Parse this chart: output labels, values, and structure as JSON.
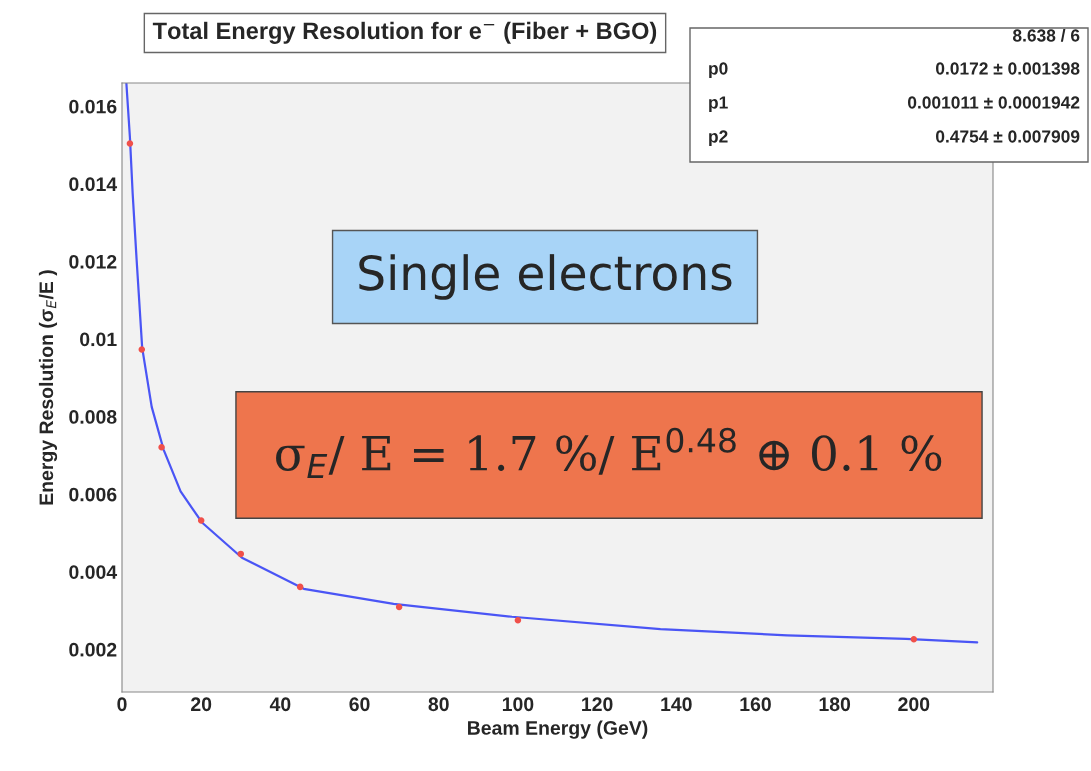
{
  "chart_data": {
    "type": "scatter",
    "title": "Total Energy Resolution for e$^{−}$ (Fiber + BGO)",
    "xlabel": "Beam Energy (GeV)",
    "ylabel": "Energy Resolution (σ$_{E}$/E )",
    "series": [
      {
        "color": "#f0504a",
        "marker": "circle",
        "x": [
          2,
          5,
          10,
          20,
          30,
          45,
          70,
          100,
          200
        ],
        "values": [
          0.01504,
          0.00973,
          0.00721,
          0.00532,
          0.00446,
          0.00361,
          0.00309,
          0.00275,
          0.00226
        ]
      },
      {
        "type": "line",
        "color": "#4a55f5",
        "x": [
          1.1,
          2.0,
          2.7,
          3.7,
          5.1,
          7.5,
          10.5,
          14.8,
          20.2,
          30.3,
          45.9,
          68.6,
          98.5,
          136,
          168,
          198,
          216
        ],
        "values": [
          0.0166,
          0.0152,
          0.01374,
          0.01203,
          0.00977,
          0.00825,
          0.00715,
          0.00607,
          0.00527,
          0.00436,
          0.00356,
          0.00317,
          0.00284,
          0.00252,
          0.00236,
          0.00227,
          0.00218
        ]
      }
    ],
    "xlim": [
      0,
      220
    ],
    "xticks": [
      0,
      20,
      40,
      60,
      80,
      100,
      120,
      140,
      160,
      180,
      200
    ],
    "ylim": [
      0.0009,
      0.0166
    ],
    "yticks": [
      0.002,
      0.004,
      0.006,
      0.008,
      0.01,
      0.012,
      0.014,
      0.016
    ],
    "grid": false,
    "annotations": [
      "8.638 / 6",
      "p0",
      "0.0172 ± 0.001398",
      "p1",
      "0.001011 ± 0.0001942",
      "p2",
      "0.4754 ± 0.007909",
      "Single electrons",
      "σ$_{E}$/ E = 1.7 %/ E$^{0.48}$ ⊕ 0.1 %"
    ]
  }
}
